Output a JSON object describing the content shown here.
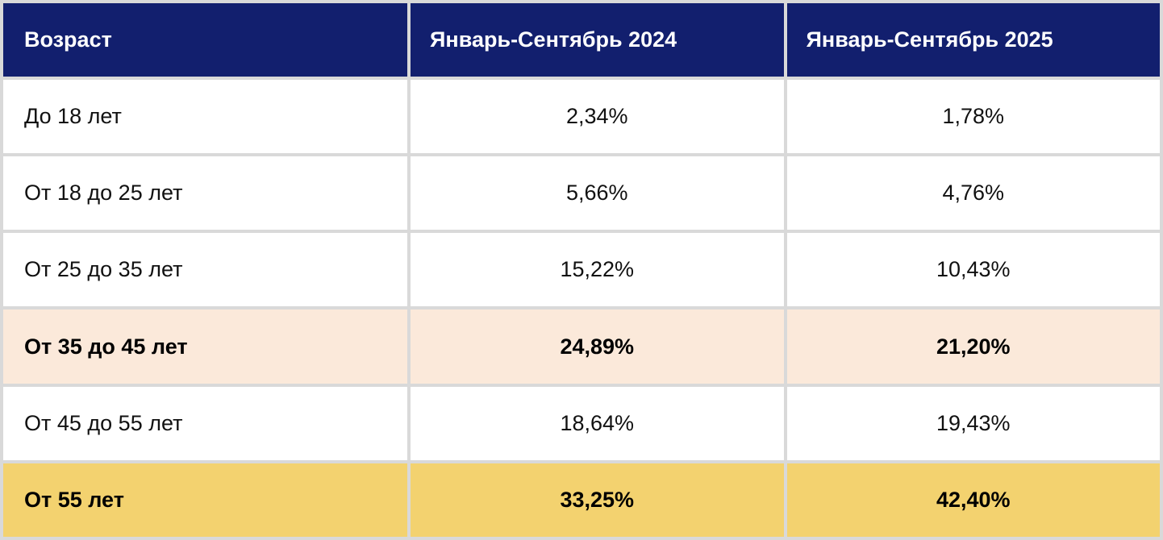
{
  "table": {
    "headers": [
      "Возраст",
      "Январь-Сентябрь 2024",
      "Январь-Сентябрь 2025"
    ],
    "rows": [
      {
        "age": "До 18 лет",
        "y2024": "2,34%",
        "y2025": "1,78%",
        "highlight": "none"
      },
      {
        "age": "От 18 до 25 лет",
        "y2024": "5,66%",
        "y2025": "4,76%",
        "highlight": "none"
      },
      {
        "age": "От 25 до 35 лет",
        "y2024": "15,22%",
        "y2025": "10,43%",
        "highlight": "none"
      },
      {
        "age": "От 35 до 45 лет",
        "y2024": "24,89%",
        "y2025": "21,20%",
        "highlight": "peach"
      },
      {
        "age": "От 45 до 55 лет",
        "y2024": "18,64%",
        "y2025": "19,43%",
        "highlight": "none"
      },
      {
        "age": "От 55 лет",
        "y2024": "33,25%",
        "y2025": "42,40%",
        "highlight": "yellow"
      }
    ]
  },
  "colors": {
    "header_bg": "#121f6e",
    "peach": "#fbe9da",
    "yellow": "#f3d26f",
    "grid": "#d9d9d9"
  }
}
